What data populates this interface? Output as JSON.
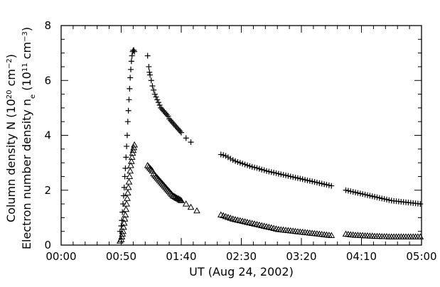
{
  "chart_data": {
    "type": "scatter",
    "title": "",
    "xlabel": "UT (Aug 24, 2002)",
    "ylabel_lines": [
      {
        "parts": [
          {
            "t": "Column density N (10",
            "k": "n"
          },
          {
            "t": "20",
            "k": "sup"
          },
          {
            "t": " cm",
            "k": "n"
          },
          {
            "t": "−2",
            "k": "sup"
          },
          {
            "t": ")",
            "k": "n"
          }
        ]
      },
      {
        "parts": [
          {
            "t": "Electron number density n",
            "k": "n"
          },
          {
            "t": "e",
            "k": "sub"
          },
          {
            "t": " (10",
            "k": "n"
          },
          {
            "t": "11",
            "k": "sup"
          },
          {
            "t": " cm",
            "k": "n"
          },
          {
            "t": "−3",
            "k": "sup"
          },
          {
            "t": ")",
            "k": "n"
          }
        ]
      }
    ],
    "x_unit": "minutes after 00:00 UT",
    "xlim": [
      0,
      300
    ],
    "ylim": [
      0,
      8
    ],
    "x_ticks": [
      {
        "value": 0,
        "label": "00:00"
      },
      {
        "value": 50,
        "label": "00:50"
      },
      {
        "value": 100,
        "label": "01:40"
      },
      {
        "value": 150,
        "label": "02:30"
      },
      {
        "value": 200,
        "label": "03:20"
      },
      {
        "value": 250,
        "label": "04:10"
      },
      {
        "value": 300,
        "label": "05:00"
      }
    ],
    "y_ticks": [
      0,
      2,
      4,
      6,
      8
    ],
    "x_minor_step": 10,
    "y_minor_step": 0.5,
    "grid": false,
    "legend": "none",
    "series": [
      {
        "marker": "plus",
        "color": "#000000",
        "points": [
          [
            49,
            0.5
          ],
          [
            50,
            0.7
          ],
          [
            50.5,
            0.9
          ],
          [
            51,
            1.2
          ],
          [
            51.5,
            1.5
          ],
          [
            52,
            1.8
          ],
          [
            52.5,
            2.1
          ],
          [
            53,
            2.5
          ],
          [
            53.5,
            2.8
          ],
          [
            54,
            3.2
          ],
          [
            54.5,
            3.6
          ],
          [
            55,
            4.0
          ],
          [
            55.5,
            4.5
          ],
          [
            56,
            4.9
          ],
          [
            56.5,
            5.3
          ],
          [
            57,
            5.7
          ],
          [
            57.5,
            6.1
          ],
          [
            58,
            6.4
          ],
          [
            58.5,
            6.7
          ],
          [
            59,
            6.9
          ],
          [
            59.5,
            7.05
          ],
          [
            60,
            7.1
          ],
          [
            60.5,
            7.1
          ],
          [
            61,
            7.05
          ],
          [
            72,
            6.9
          ],
          [
            73,
            6.5
          ],
          [
            73.5,
            6.3
          ],
          [
            74,
            6.2
          ],
          [
            75,
            6.0
          ],
          [
            76,
            5.8
          ],
          [
            77,
            5.65
          ],
          [
            78,
            5.5
          ],
          [
            79,
            5.4
          ],
          [
            80,
            5.3
          ],
          [
            81,
            5.2
          ],
          [
            82,
            5.1
          ],
          [
            83,
            5.0
          ],
          [
            84,
            4.95
          ],
          [
            85,
            4.9
          ],
          [
            86,
            4.85
          ],
          [
            87,
            4.8
          ],
          [
            88,
            4.75
          ],
          [
            89,
            4.7
          ],
          [
            90,
            4.6
          ],
          [
            91,
            4.55
          ],
          [
            92,
            4.5
          ],
          [
            93,
            4.45
          ],
          [
            94,
            4.4
          ],
          [
            95,
            4.35
          ],
          [
            96,
            4.3
          ],
          [
            97,
            4.25
          ],
          [
            98,
            4.2
          ],
          [
            99,
            4.15
          ],
          [
            100,
            4.1
          ],
          [
            104,
            3.9
          ],
          [
            108,
            3.75
          ],
          [
            133,
            3.3
          ],
          [
            135,
            3.28
          ],
          [
            137,
            3.25
          ],
          [
            139,
            3.2
          ],
          [
            141,
            3.15
          ],
          [
            143,
            3.1
          ],
          [
            145,
            3.06
          ],
          [
            147,
            3.03
          ],
          [
            149,
            3.0
          ],
          [
            151,
            2.97
          ],
          [
            153,
            2.94
          ],
          [
            155,
            2.91
          ],
          [
            157,
            2.88
          ],
          [
            159,
            2.85
          ],
          [
            161,
            2.83
          ],
          [
            163,
            2.81
          ],
          [
            165,
            2.78
          ],
          [
            167,
            2.75
          ],
          [
            169,
            2.73
          ],
          [
            171,
            2.7
          ],
          [
            173,
            2.68
          ],
          [
            175,
            2.66
          ],
          [
            177,
            2.64
          ],
          [
            179,
            2.62
          ],
          [
            181,
            2.6
          ],
          [
            183,
            2.58
          ],
          [
            185,
            2.56
          ],
          [
            187,
            2.54
          ],
          [
            189,
            2.52
          ],
          [
            191,
            2.5
          ],
          [
            193,
            2.48
          ],
          [
            195,
            2.46
          ],
          [
            197,
            2.44
          ],
          [
            199,
            2.42
          ],
          [
            201,
            2.4
          ],
          [
            203,
            2.38
          ],
          [
            205,
            2.36
          ],
          [
            207,
            2.34
          ],
          [
            209,
            2.32
          ],
          [
            211,
            2.3
          ],
          [
            213,
            2.28
          ],
          [
            215,
            2.26
          ],
          [
            217,
            2.24
          ],
          [
            219,
            2.22
          ],
          [
            221,
            2.2
          ],
          [
            223,
            2.18
          ],
          [
            225,
            2.16
          ],
          [
            237,
            2.0
          ],
          [
            239,
            1.98
          ],
          [
            241,
            1.96
          ],
          [
            243,
            1.94
          ],
          [
            245,
            1.92
          ],
          [
            247,
            1.9
          ],
          [
            249,
            1.88
          ],
          [
            251,
            1.86
          ],
          [
            253,
            1.84
          ],
          [
            255,
            1.82
          ],
          [
            257,
            1.8
          ],
          [
            259,
            1.78
          ],
          [
            261,
            1.76
          ],
          [
            263,
            1.74
          ],
          [
            265,
            1.72
          ],
          [
            267,
            1.7
          ],
          [
            269,
            1.68
          ],
          [
            271,
            1.66
          ],
          [
            273,
            1.64
          ],
          [
            275,
            1.62
          ],
          [
            277,
            1.61
          ],
          [
            279,
            1.6
          ],
          [
            281,
            1.59
          ],
          [
            283,
            1.58
          ],
          [
            285,
            1.57
          ],
          [
            287,
            1.56
          ],
          [
            289,
            1.55
          ],
          [
            291,
            1.54
          ],
          [
            293,
            1.53
          ],
          [
            295,
            1.52
          ],
          [
            297,
            1.51
          ],
          [
            299,
            1.5
          ]
        ]
      },
      {
        "marker": "triangle",
        "color": "#000000",
        "points": [
          [
            49,
            0.15
          ],
          [
            50,
            0.2
          ],
          [
            50.5,
            0.3
          ],
          [
            51,
            0.4
          ],
          [
            51.5,
            0.5
          ],
          [
            52,
            0.65
          ],
          [
            52.5,
            0.8
          ],
          [
            53,
            0.95
          ],
          [
            53.5,
            1.1
          ],
          [
            54,
            1.3
          ],
          [
            54.5,
            1.5
          ],
          [
            55,
            1.7
          ],
          [
            55.5,
            1.9
          ],
          [
            56,
            2.1
          ],
          [
            56.5,
            2.3
          ],
          [
            57,
            2.5
          ],
          [
            57.5,
            2.7
          ],
          [
            58,
            2.9
          ],
          [
            58.5,
            3.05
          ],
          [
            59,
            3.2
          ],
          [
            59.5,
            3.35
          ],
          [
            60,
            3.45
          ],
          [
            60.5,
            3.55
          ],
          [
            61,
            3.65
          ],
          [
            72,
            2.9
          ],
          [
            73,
            2.85
          ],
          [
            74,
            2.8
          ],
          [
            75,
            2.75
          ],
          [
            76,
            2.7
          ],
          [
            77,
            2.6
          ],
          [
            78,
            2.55
          ],
          [
            79,
            2.5
          ],
          [
            80,
            2.45
          ],
          [
            81,
            2.4
          ],
          [
            82,
            2.35
          ],
          [
            83,
            2.3
          ],
          [
            84,
            2.25
          ],
          [
            85,
            2.2
          ],
          [
            86,
            2.15
          ],
          [
            87,
            2.1
          ],
          [
            88,
            2.05
          ],
          [
            89,
            2.0
          ],
          [
            90,
            1.95
          ],
          [
            91,
            1.9
          ],
          [
            92,
            1.85
          ],
          [
            93,
            1.8
          ],
          [
            94,
            1.78
          ],
          [
            95,
            1.75
          ],
          [
            96,
            1.72
          ],
          [
            97,
            1.7
          ],
          [
            98,
            1.68
          ],
          [
            99,
            1.65
          ],
          [
            100,
            1.62
          ],
          [
            104,
            1.5
          ],
          [
            108,
            1.38
          ],
          [
            113,
            1.25
          ],
          [
            133,
            1.1
          ],
          [
            135,
            1.07
          ],
          [
            137,
            1.04
          ],
          [
            139,
            1.01
          ],
          [
            141,
            0.98
          ],
          [
            143,
            0.95
          ],
          [
            145,
            0.93
          ],
          [
            147,
            0.91
          ],
          [
            149,
            0.89
          ],
          [
            151,
            0.87
          ],
          [
            153,
            0.85
          ],
          [
            155,
            0.83
          ],
          [
            157,
            0.81
          ],
          [
            159,
            0.79
          ],
          [
            161,
            0.77
          ],
          [
            163,
            0.75
          ],
          [
            165,
            0.73
          ],
          [
            167,
            0.71
          ],
          [
            169,
            0.69
          ],
          [
            171,
            0.67
          ],
          [
            173,
            0.65
          ],
          [
            175,
            0.63
          ],
          [
            177,
            0.61
          ],
          [
            179,
            0.59
          ],
          [
            181,
            0.57
          ],
          [
            183,
            0.56
          ],
          [
            185,
            0.55
          ],
          [
            187,
            0.54
          ],
          [
            189,
            0.53
          ],
          [
            191,
            0.52
          ],
          [
            193,
            0.51
          ],
          [
            195,
            0.5
          ],
          [
            197,
            0.49
          ],
          [
            199,
            0.48
          ],
          [
            201,
            0.47
          ],
          [
            203,
            0.46
          ],
          [
            205,
            0.45
          ],
          [
            207,
            0.44
          ],
          [
            209,
            0.43
          ],
          [
            211,
            0.42
          ],
          [
            213,
            0.41
          ],
          [
            215,
            0.4
          ],
          [
            217,
            0.39
          ],
          [
            219,
            0.38
          ],
          [
            221,
            0.37
          ],
          [
            223,
            0.36
          ],
          [
            225,
            0.35
          ],
          [
            237,
            0.4
          ],
          [
            239,
            0.39
          ],
          [
            241,
            0.38
          ],
          [
            243,
            0.37
          ],
          [
            245,
            0.36
          ],
          [
            247,
            0.36
          ],
          [
            249,
            0.35
          ],
          [
            251,
            0.35
          ],
          [
            253,
            0.34
          ],
          [
            255,
            0.34
          ],
          [
            257,
            0.33
          ],
          [
            259,
            0.33
          ],
          [
            261,
            0.32
          ],
          [
            263,
            0.32
          ],
          [
            265,
            0.32
          ],
          [
            267,
            0.31
          ],
          [
            269,
            0.31
          ],
          [
            271,
            0.31
          ],
          [
            273,
            0.3
          ],
          [
            275,
            0.3
          ],
          [
            277,
            0.3
          ],
          [
            279,
            0.3
          ],
          [
            281,
            0.3
          ],
          [
            283,
            0.3
          ],
          [
            285,
            0.3
          ],
          [
            287,
            0.3
          ],
          [
            289,
            0.3
          ],
          [
            291,
            0.3
          ],
          [
            293,
            0.3
          ],
          [
            295,
            0.3
          ],
          [
            297,
            0.3
          ],
          [
            299,
            0.3
          ]
        ]
      }
    ]
  }
}
